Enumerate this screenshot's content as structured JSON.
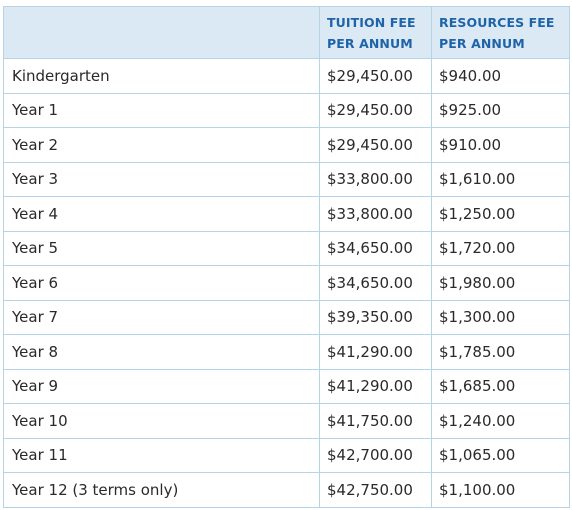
{
  "table": {
    "headers": {
      "level": "",
      "tuition_line1": "TUITION FEE",
      "tuition_line2": "PER ANNUM",
      "resources_line1": "RESOURCES FEE",
      "resources_line2": "PER ANNUM"
    },
    "rows": [
      {
        "level": "Kindergarten",
        "tuition": "$29,450.00",
        "resources": "$940.00"
      },
      {
        "level": "Year 1",
        "tuition": "$29,450.00",
        "resources": "$925.00"
      },
      {
        "level": "Year 2",
        "tuition": "$29,450.00",
        "resources": "$910.00"
      },
      {
        "level": "Year 3",
        "tuition": "$33,800.00",
        "resources": "$1,610.00"
      },
      {
        "level": "Year 4",
        "tuition": "$33,800.00",
        "resources": "$1,250.00"
      },
      {
        "level": "Year 5",
        "tuition": "$34,650.00",
        "resources": "$1,720.00"
      },
      {
        "level": "Year 6",
        "tuition": "$34,650.00",
        "resources": "$1,980.00"
      },
      {
        "level": "Year 7",
        "tuition": "$39,350.00",
        "resources": "$1,300.00"
      },
      {
        "level": "Year 8",
        "tuition": "$41,290.00",
        "resources": "$1,785.00"
      },
      {
        "level": "Year 9",
        "tuition": "$41,290.00",
        "resources": "$1,685.00"
      },
      {
        "level": "Year 10",
        "tuition": "$41,750.00",
        "resources": "$1,240.00"
      },
      {
        "level": "Year 11",
        "tuition": "$42,700.00",
        "resources": "$1,065.00"
      },
      {
        "level": "Year 12 (3 terms only)",
        "tuition": "$42,750.00",
        "resources": "$1,100.00"
      }
    ]
  }
}
